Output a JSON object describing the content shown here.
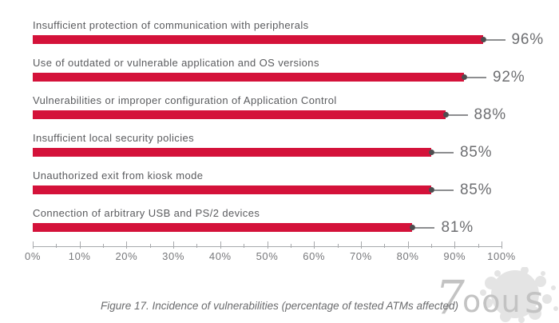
{
  "chart_data": {
    "type": "bar",
    "orientation": "horizontal",
    "title": "",
    "xlabel": "",
    "ylabel": "",
    "caption": "Figure 17. Incidence of vulnerabilities (percentage of tested ATMs affected)",
    "categories": [
      "Insufficient protection of communication with peripherals",
      "Use of outdated or vulnerable application and OS versions",
      "Vulnerabilities or improper configuration of Application Control",
      "Insufficient local security policies",
      "Unauthorized exit from kiosk mode",
      "Connection of arbitrary USB and PS/2 devices"
    ],
    "values": [
      96,
      92,
      88,
      85,
      85,
      81
    ],
    "value_labels": [
      "96%",
      "92%",
      "88%",
      "85%",
      "85%",
      "81%"
    ],
    "xlim": [
      0,
      100
    ],
    "x_ticks": [
      "0%",
      "10%",
      "20%",
      "30%",
      "40%",
      "50%",
      "60%",
      "70%",
      "80%",
      "90%",
      "100%"
    ],
    "minor_tick_step": 5,
    "grid": false,
    "legend": null
  },
  "watermark": {
    "glyph_7": "7",
    "glyph_mid": "oou",
    "glyph_s": "s"
  },
  "colors": {
    "bar": "#d4123a",
    "dot": "#4d4d4f",
    "leader": "#8d8e90",
    "label": "#5a5b5e",
    "pct": "#6d6e71",
    "axis": "#a7a9ac",
    "tick_label": "#77787b",
    "caption": "#6a6b6d",
    "watermark": "#c3c3c3",
    "splatter": "#e4e4e4"
  }
}
